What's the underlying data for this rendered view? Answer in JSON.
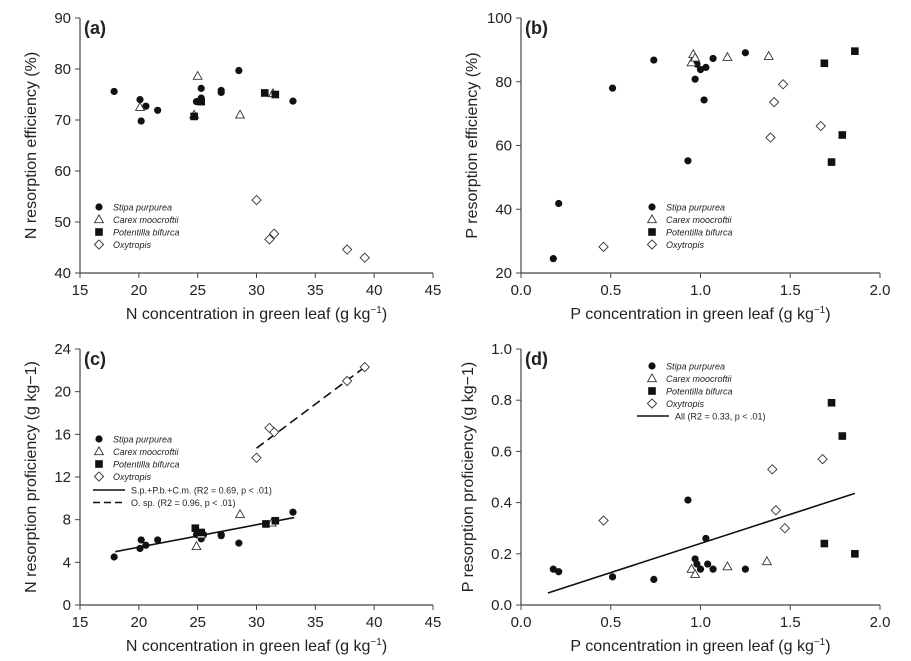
{
  "chart_data": [
    {
      "panel_label": "(a)",
      "type": "scatter",
      "xlabel_main": "N concentration in green leaf (g kg",
      "xlabel_exp": "−1",
      "xlabel_end": ")",
      "ylabel": "N resorption efficiency (%)",
      "xlim": [
        15,
        45
      ],
      "ylim": [
        40,
        90
      ],
      "xticks": [
        15,
        20,
        25,
        30,
        35,
        40,
        45
      ],
      "yticks": [
        40,
        50,
        60,
        70,
        80,
        90
      ],
      "x_decimals": 0,
      "y_decimals": 0,
      "legend_position": "lower-left",
      "legend": [
        "Stipa purpurea",
        "Carex moocroftii",
        "Potentilla bifurca",
        "Oxytropis"
      ],
      "series": [
        {
          "name": "Stipa purpurea",
          "marker": "circle",
          "points": [
            [
              17.9,
              75.6
            ],
            [
              20.1,
              74
            ],
            [
              20.2,
              69.8
            ],
            [
              20.6,
              72.7
            ],
            [
              21.6,
              71.9
            ],
            [
              24.9,
              73.6
            ],
            [
              25.3,
              74.3
            ],
            [
              25.3,
              76.2
            ],
            [
              27.0,
              75.8
            ],
            [
              27.0,
              75.4
            ],
            [
              28.5,
              79.7
            ],
            [
              33.1,
              73.7
            ]
          ]
        },
        {
          "name": "Carex moocroftii",
          "marker": "triangle",
          "points": [
            [
              20.1,
              72.5
            ],
            [
              24.7,
              71.0
            ],
            [
              25.0,
              78.6
            ],
            [
              28.6,
              71.0
            ],
            [
              31.4,
              75.2
            ]
          ]
        },
        {
          "name": "Potentilla bifurca",
          "marker": "square",
          "points": [
            [
              24.7,
              70.7
            ],
            [
              25.3,
              73.6
            ],
            [
              30.7,
              75.3
            ],
            [
              31.6,
              75.0
            ]
          ]
        },
        {
          "name": "Oxytropis",
          "marker": "diamond",
          "points": [
            [
              30.0,
              54.3
            ],
            [
              31.1,
              46.6
            ],
            [
              31.5,
              47.7
            ],
            [
              37.7,
              44.6
            ],
            [
              39.2,
              43.0
            ]
          ]
        }
      ]
    },
    {
      "panel_label": "(b)",
      "type": "scatter",
      "xlabel_main": "P concentration in green leaf (g kg",
      "xlabel_exp": "−1",
      "xlabel_end": ")",
      "ylabel": "P resorption efficiency (%)",
      "xlim": [
        0,
        2
      ],
      "ylim": [
        20,
        100
      ],
      "xticks": [
        0,
        0.5,
        1.0,
        1.5,
        2.0
      ],
      "yticks": [
        20,
        40,
        60,
        80,
        100
      ],
      "x_decimals": 1,
      "y_decimals": 0,
      "legend_position": "lower-center",
      "legend": [
        "Stipa purpurea",
        "Carex moocroftii",
        "Potentilla bifurca",
        "Oxytropis"
      ],
      "series": [
        {
          "name": "Stipa purpurea",
          "marker": "circle",
          "points": [
            [
              0.18,
              24.5
            ],
            [
              0.21,
              41.8
            ],
            [
              0.51,
              78
            ],
            [
              0.74,
              86.8
            ],
            [
              0.93,
              55.2
            ],
            [
              0.97,
              80.8
            ],
            [
              0.98,
              85.5
            ],
            [
              1.0,
              83.8
            ],
            [
              1.02,
              74.3
            ],
            [
              1.03,
              84.5
            ],
            [
              1.07,
              87.3
            ],
            [
              1.25,
              89.1
            ]
          ]
        },
        {
          "name": "Carex moocroftii",
          "marker": "triangle",
          "points": [
            [
              0.95,
              86.0
            ],
            [
              0.96,
              88.6
            ],
            [
              0.97,
              87.5
            ],
            [
              1.15,
              87.7
            ],
            [
              1.38,
              88.0
            ]
          ]
        },
        {
          "name": "Potentilla bifurca",
          "marker": "square",
          "points": [
            [
              1.69,
              85.8
            ],
            [
              1.73,
              54.8
            ],
            [
              1.79,
              63.3
            ],
            [
              1.86,
              89.6
            ]
          ]
        },
        {
          "name": "Oxytropis",
          "marker": "diamond",
          "points": [
            [
              0.46,
              28.2
            ],
            [
              1.39,
              62.5
            ],
            [
              1.41,
              73.6
            ],
            [
              1.46,
              79.2
            ],
            [
              1.67,
              66.1
            ]
          ]
        }
      ]
    },
    {
      "panel_label": "(c)",
      "type": "scatter",
      "xlabel_main": "N concentration in green leaf (g kg",
      "xlabel_exp": "−1",
      "xlabel_end": ")",
      "ylabel": "N resorption proficiency (g kg−1)",
      "xlim": [
        15,
        45
      ],
      "ylim": [
        0,
        24
      ],
      "xticks": [
        15,
        20,
        25,
        30,
        35,
        40,
        45
      ],
      "yticks": [
        0,
        4,
        8,
        12,
        16,
        20,
        24
      ],
      "x_decimals": 0,
      "y_decimals": 0,
      "legend_position": "middle-left",
      "legend": [
        "Stipa purpurea",
        "Carex moocroftii",
        "Potentilla bifurca",
        "Oxytropis"
      ],
      "fit_legend": [
        "S.p.+P.b.+C.m. (R2 = 0.69, p < .01)",
        "O. sp. (R2 = 0.96, p < .01)"
      ],
      "fits": [
        {
          "label": "S.p.+P.b.+C.m. (R2 = 0.69, p < .01)",
          "dash": false,
          "x": [
            18,
            33.2
          ],
          "y": [
            5.0,
            8.2
          ]
        },
        {
          "label": "O. sp. (R2 = 0.96, p < .01)",
          "dash": true,
          "x": [
            30,
            39.2
          ],
          "y": [
            14.7,
            22.3
          ]
        }
      ],
      "series": [
        {
          "name": "Stipa purpurea",
          "marker": "circle",
          "points": [
            [
              17.9,
              4.5
            ],
            [
              20.1,
              5.3
            ],
            [
              20.2,
              6.1
            ],
            [
              20.6,
              5.6
            ],
            [
              21.6,
              6.1
            ],
            [
              24.9,
              6.6
            ],
            [
              25.3,
              6.2
            ],
            [
              25.5,
              6.6
            ],
            [
              27.0,
              6.5
            ],
            [
              27.0,
              6.6
            ],
            [
              28.5,
              5.8
            ],
            [
              33.1,
              8.7
            ]
          ]
        },
        {
          "name": "Carex moocroftii",
          "marker": "triangle",
          "points": [
            [
              24.9,
              5.5
            ],
            [
              25.3,
              6.6
            ],
            [
              28.6,
              8.5
            ],
            [
              31.3,
              7.7
            ]
          ]
        },
        {
          "name": "Potentilla bifurca",
          "marker": "square",
          "points": [
            [
              24.8,
              7.2
            ],
            [
              25.3,
              6.8
            ],
            [
              30.8,
              7.6
            ],
            [
              31.6,
              7.9
            ]
          ]
        },
        {
          "name": "Oxytropis",
          "marker": "diamond",
          "points": [
            [
              30.0,
              13.8
            ],
            [
              31.1,
              16.6
            ],
            [
              31.5,
              16.2
            ],
            [
              37.7,
              21.0
            ],
            [
              39.2,
              22.3
            ]
          ]
        }
      ]
    },
    {
      "panel_label": "(d)",
      "type": "scatter",
      "xlabel_main": "P concentration in green leaf (g kg",
      "xlabel_exp": "−1",
      "xlabel_end": ")",
      "ylabel": "P resorption proficiency (g kg−1)",
      "xlim": [
        0,
        2
      ],
      "ylim": [
        0,
        1
      ],
      "xticks": [
        0,
        0.5,
        1.0,
        1.5,
        2.0
      ],
      "yticks": [
        0,
        0.2,
        0.4,
        0.6,
        0.8,
        1.0
      ],
      "x_decimals": 1,
      "y_decimals": 1,
      "legend_position": "top-center",
      "legend": [
        "Stipa purpurea",
        "Carex moocroftii",
        "Potentilla bifurca",
        "Oxytropis"
      ],
      "fit_legend": [
        "All  (R2 = 0.33, p < .01)"
      ],
      "fits": [
        {
          "label": "All  (R2 = 0.33, p < .01)",
          "dash": false,
          "x": [
            0.15,
            1.86
          ],
          "y": [
            0.047,
            0.436
          ]
        }
      ],
      "series": [
        {
          "name": "Stipa purpurea",
          "marker": "circle",
          "points": [
            [
              0.18,
              0.14
            ],
            [
              0.21,
              0.13
            ],
            [
              0.51,
              0.11
            ],
            [
              0.74,
              0.1
            ],
            [
              0.93,
              0.41
            ],
            [
              0.97,
              0.18
            ],
            [
              0.98,
              0.16
            ],
            [
              1.0,
              0.14
            ],
            [
              1.03,
              0.26
            ],
            [
              1.04,
              0.16
            ],
            [
              1.07,
              0.14
            ],
            [
              1.25,
              0.14
            ]
          ]
        },
        {
          "name": "Carex moocroftii",
          "marker": "triangle",
          "points": [
            [
              0.95,
              0.14
            ],
            [
              0.97,
              0.12
            ],
            [
              1.15,
              0.15
            ],
            [
              1.37,
              0.17
            ]
          ]
        },
        {
          "name": "Potentilla bifurca",
          "marker": "square",
          "points": [
            [
              1.69,
              0.24
            ],
            [
              1.73,
              0.79
            ],
            [
              1.79,
              0.66
            ],
            [
              1.86,
              0.2
            ]
          ]
        },
        {
          "name": "Oxytropis",
          "marker": "diamond",
          "points": [
            [
              0.46,
              0.33
            ],
            [
              1.4,
              0.53
            ],
            [
              1.42,
              0.37
            ],
            [
              1.47,
              0.3
            ],
            [
              1.68,
              0.57
            ]
          ]
        }
      ]
    }
  ]
}
